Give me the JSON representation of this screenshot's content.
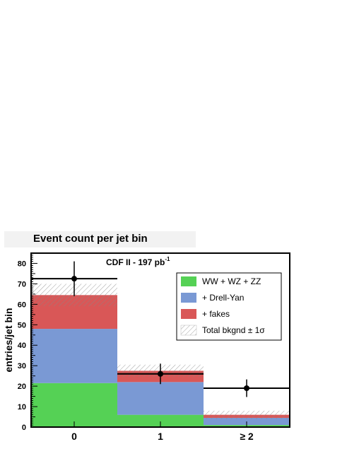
{
  "chart_data": {
    "type": "bar",
    "title": "Event count per jet bin",
    "annotation": "CDF II - 197 pb",
    "annotation_sup": "-1",
    "ylabel": "entries/jet bin",
    "xlabel": "",
    "categories": [
      "0",
      "1",
      "≥ 2"
    ],
    "ylim": [
      0,
      85
    ],
    "yticks": [
      0,
      10,
      20,
      30,
      40,
      50,
      60,
      70,
      80
    ],
    "stacked": true,
    "series": [
      {
        "name": "WW + WZ + ZZ",
        "color": "#55d155",
        "values": [
          21.5,
          6.0,
          1.0
        ]
      },
      {
        "name": "+ Drell-Yan",
        "color": "#7a99d4",
        "values": [
          26.5,
          16.0,
          3.5
        ]
      },
      {
        "name": "+ fakes",
        "color": "#d95757",
        "values": [
          16.5,
          5.5,
          1.5
        ]
      }
    ],
    "uncertainty": {
      "name": "Total bkgnd ± 1σ",
      "values": [
        5.5,
        3.0,
        2.0
      ]
    },
    "data_points": {
      "values": [
        72.5,
        26.0,
        19.0
      ],
      "errors": [
        8.5,
        5.0,
        4.3
      ]
    },
    "legend": {
      "placement": "top-right"
    }
  }
}
